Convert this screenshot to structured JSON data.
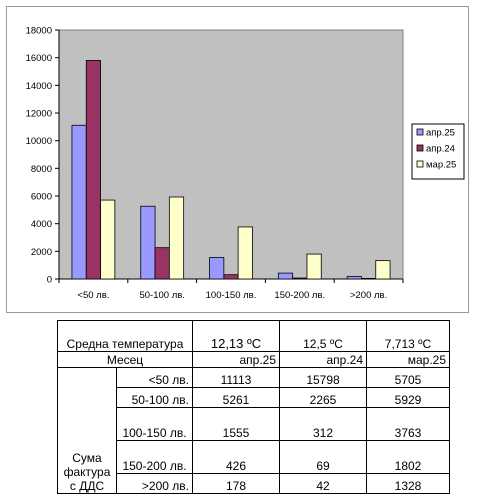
{
  "chart_data": {
    "type": "bar",
    "categories": [
      "<50 лв.",
      "50-100 лв.",
      "100-150 лв.",
      "150-200 лв.",
      ">200 лв."
    ],
    "series": [
      {
        "name": "апр.25",
        "color": "#9999ff",
        "values": [
          11113,
          5261,
          1555,
          426,
          178
        ]
      },
      {
        "name": "апр.24",
        "color": "#993366",
        "values": [
          15798,
          2265,
          312,
          69,
          42
        ]
      },
      {
        "name": "мар.25",
        "color": "#ffffcc",
        "values": [
          5705,
          5929,
          3763,
          1802,
          1328
        ]
      }
    ],
    "yticks": [
      "0",
      "2000",
      "4000",
      "6000",
      "8000",
      "10000",
      "12000",
      "14000",
      "16000",
      "18000"
    ],
    "ylim": [
      0,
      18000
    ],
    "plot_background": "#c0c0c0",
    "legend_position": "right",
    "gridlines": false
  },
  "table": {
    "temp_label": "Средна температура",
    "temps": [
      "12,13 ºC",
      "12,5 ºC",
      "7,713 ºC"
    ],
    "month_label": "Месец",
    "months": [
      "апр.25",
      "апр.24",
      "мар.25"
    ],
    "group_label": "Сума фактура с ДДС",
    "rows": [
      {
        "label": "<50 лв.",
        "values": [
          "11113",
          "15798",
          "5705"
        ]
      },
      {
        "label": "50-100 лв.",
        "values": [
          "5261",
          "2265",
          "5929"
        ]
      },
      {
        "label": "100-150 лв.",
        "values": [
          "1555",
          "312",
          "3763"
        ]
      },
      {
        "label": "150-200 лв.",
        "values": [
          "426",
          "69",
          "1802"
        ]
      },
      {
        "label": ">200 лв.",
        "values": [
          "178",
          "42",
          "1328"
        ]
      }
    ]
  }
}
